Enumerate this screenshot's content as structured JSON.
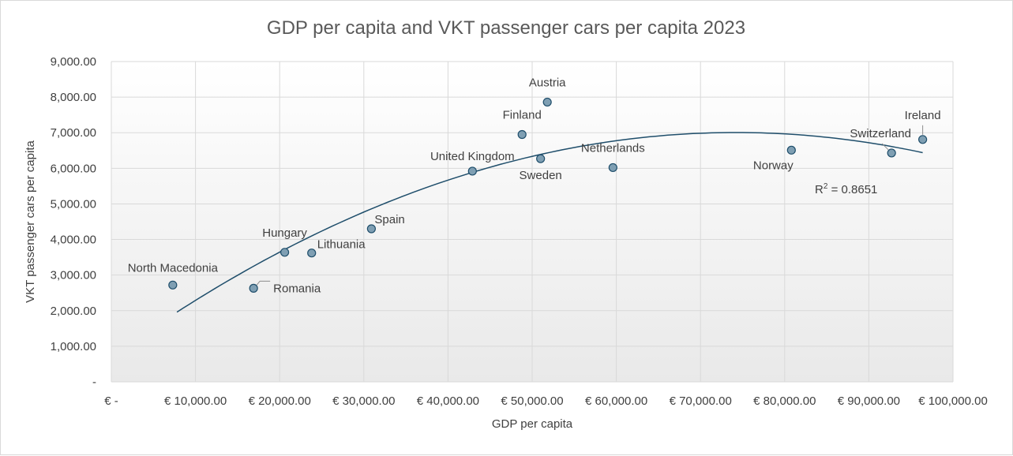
{
  "chart_data": {
    "type": "scatter",
    "title": "GDP per capita and VKT passenger cars per capita 2023",
    "xlabel": "GDP per capita",
    "ylabel": "VKT passenger cars per capita",
    "xlim": [
      0,
      100000
    ],
    "ylim": [
      0,
      9000
    ],
    "x_ticks": [
      0,
      10000,
      20000,
      30000,
      40000,
      50000,
      60000,
      70000,
      80000,
      90000,
      100000
    ],
    "x_tick_labels": [
      "€ -",
      "€ 10,000.00",
      "€ 20,000.00",
      "€ 30,000.00",
      "€ 40,000.00",
      "€ 50,000.00",
      "€ 60,000.00",
      "€ 70,000.00",
      "€ 80,000.00",
      "€ 90,000.00",
      "€ 100,000.00"
    ],
    "y_ticks": [
      0,
      1000,
      2000,
      3000,
      4000,
      5000,
      6000,
      7000,
      8000,
      9000
    ],
    "y_tick_labels": [
      "-",
      "1,000.00",
      "2,000.00",
      "3,000.00",
      "4,000.00",
      "5,000.00",
      "6,000.00",
      "7,000.00",
      "8,000.00",
      "9,000.00"
    ],
    "grid": true,
    "legend": "none",
    "points": [
      {
        "label": "North Macedonia",
        "x": 7300,
        "y": 2720
      },
      {
        "label": "Romania",
        "x": 16900,
        "y": 2630
      },
      {
        "label": "Hungary",
        "x": 20600,
        "y": 3640
      },
      {
        "label": "Lithuania",
        "x": 23800,
        "y": 3620
      },
      {
        "label": "Spain",
        "x": 30900,
        "y": 4300
      },
      {
        "label": "United Kingdom",
        "x": 42900,
        "y": 5920
      },
      {
        "label": "Finland",
        "x": 48800,
        "y": 6950
      },
      {
        "label": "Sweden",
        "x": 51000,
        "y": 6270
      },
      {
        "label": "Austria",
        "x": 51800,
        "y": 7860
      },
      {
        "label": "Netherlands",
        "x": 59600,
        "y": 6020
      },
      {
        "label": "Norway",
        "x": 80800,
        "y": 6510
      },
      {
        "label": "Switzerland",
        "x": 92700,
        "y": 6430
      },
      {
        "label": "Ireland",
        "x": 96400,
        "y": 6810
      }
    ],
    "trendline": {
      "type": "polynomial",
      "order": 2,
      "r_squared_label": "R² = 0.8651",
      "x_range": [
        7800,
        96400
      ],
      "curve_y": [
        1960,
        6440
      ]
    },
    "colors": {
      "marker_fill": "#7f9fb3",
      "marker_stroke": "#1f4e6b",
      "trendline": "#1f4e6b",
      "grid": "#d9d9d9",
      "text": "#404040",
      "title": "#595959"
    }
  }
}
